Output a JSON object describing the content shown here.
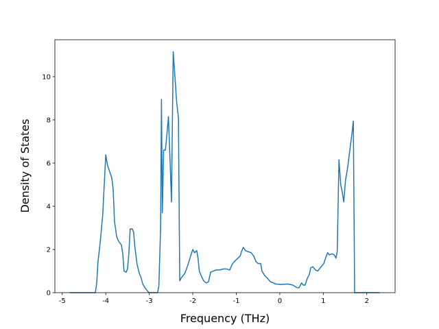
{
  "chart_data": {
    "type": "line",
    "xlabel": "Frequency (THz)",
    "ylabel": "Density of States",
    "xlim": [
      -5.17,
      2.65
    ],
    "ylim": [
      0,
      11.71
    ],
    "xticks": [
      -5,
      -4,
      -3,
      -2,
      -1,
      0,
      1,
      2
    ],
    "yticks": [
      0,
      2,
      4,
      6,
      8,
      10
    ],
    "series": [
      {
        "color": "#1f77b4",
        "x": [
          -4.83,
          -4.24,
          -4.21,
          -4.18,
          -4.12,
          -4.07,
          -4.04,
          -4.0,
          -3.96,
          -3.91,
          -3.86,
          -3.83,
          -3.8,
          -3.75,
          -3.71,
          -3.64,
          -3.61,
          -3.58,
          -3.53,
          -3.5,
          -3.47,
          -3.44,
          -3.39,
          -3.36,
          -3.33,
          -3.28,
          -3.23,
          -3.19,
          -3.15,
          -3.09,
          -3.03,
          -3.0,
          -2.81,
          -2.78,
          -2.74,
          -2.72,
          -2.7,
          -2.67,
          -2.63,
          -2.6,
          -2.56,
          -2.52,
          -2.49,
          -2.45,
          -2.41,
          -2.37,
          -2.33,
          -2.3,
          -2.26,
          -2.18,
          -2.11,
          -2.05,
          -2.0,
          -1.96,
          -1.91,
          -1.88,
          -1.85,
          -1.8,
          -1.75,
          -1.69,
          -1.64,
          -1.59,
          -1.53,
          -1.47,
          -1.39,
          -1.29,
          -1.23,
          -1.15,
          -1.1,
          -1.04,
          -0.96,
          -0.91,
          -0.88,
          -0.84,
          -0.79,
          -0.73,
          -0.66,
          -0.6,
          -0.55,
          -0.5,
          -0.44,
          -0.41,
          -0.35,
          -0.28,
          -0.21,
          -0.09,
          0.03,
          0.19,
          0.3,
          0.38,
          0.44,
          0.5,
          0.54,
          0.58,
          0.63,
          0.68,
          0.71,
          0.76,
          0.82,
          0.87,
          0.93,
          1.01,
          1.06,
          1.1,
          1.14,
          1.2,
          1.25,
          1.29,
          1.32,
          1.36,
          1.4,
          1.44,
          1.47,
          1.51,
          1.56,
          1.61,
          1.66,
          1.69,
          1.72,
          2.29
        ],
        "values": [
          0,
          0,
          0.4,
          1.4,
          2.5,
          3.6,
          4.8,
          6.38,
          5.9,
          5.6,
          5.3,
          4.8,
          3.3,
          2.6,
          2.4,
          2.2,
          1.8,
          1.0,
          0.95,
          1.1,
          1.8,
          2.95,
          2.95,
          2.8,
          2.1,
          1.3,
          0.9,
          0.7,
          0.4,
          0.2,
          0.05,
          0,
          0,
          0.3,
          3,
          8.95,
          3.7,
          6.6,
          6.6,
          7.2,
          8.15,
          6,
          4.2,
          11.15,
          10,
          8.8,
          8.1,
          0.55,
          0.7,
          0.9,
          1.3,
          1.7,
          2.0,
          1.85,
          1.95,
          1.6,
          1.0,
          0.75,
          0.55,
          0.45,
          0.5,
          0.95,
          1.0,
          1.05,
          1.05,
          1.1,
          1.1,
          1.05,
          1.3,
          1.45,
          1.6,
          1.7,
          1.9,
          2.1,
          1.95,
          1.9,
          1.85,
          1.7,
          1.45,
          1.35,
          1.35,
          1.0,
          0.8,
          0.65,
          0.5,
          0.4,
          0.38,
          0.4,
          0.35,
          0.25,
          0.22,
          0.45,
          0.35,
          0.35,
          0.65,
          0.85,
          1.15,
          1.2,
          1.05,
          1.0,
          1.15,
          1.35,
          1.65,
          1.85,
          1.75,
          1.8,
          1.75,
          1.6,
          1.9,
          6.15,
          5.0,
          4.6,
          4.2,
          5.2,
          5.8,
          6.6,
          7.4,
          7.95,
          0,
          0
        ]
      }
    ]
  }
}
